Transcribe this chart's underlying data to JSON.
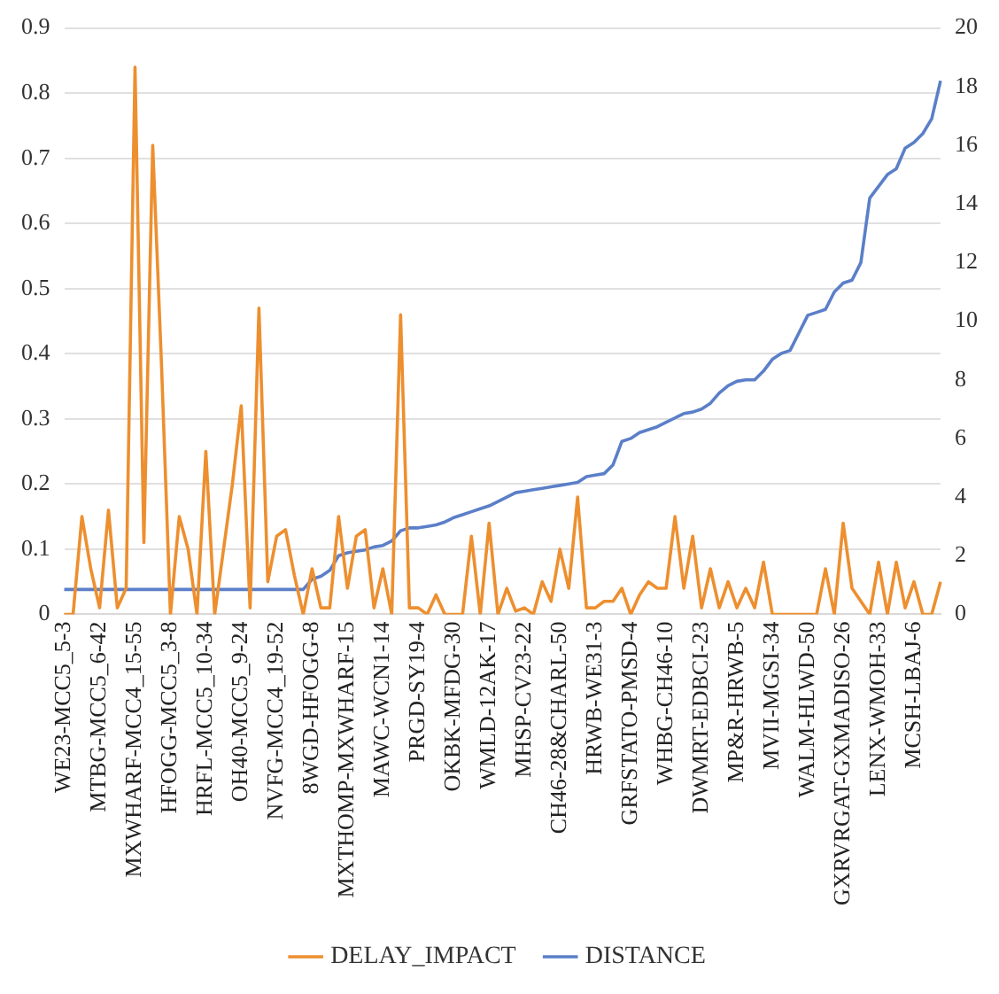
{
  "chart_data": {
    "type": "line",
    "categories": [
      "WE23-MCC5_5-3",
      null,
      null,
      null,
      "MTBG-MCC5_6-42",
      null,
      null,
      null,
      "MXWHARF-MCC4_15-55",
      null,
      null,
      null,
      "HFOGG-MCC5_3-8",
      null,
      null,
      null,
      "HRFL-MCC5_10-34",
      null,
      null,
      null,
      "OH40-MCC5_9-24",
      null,
      null,
      null,
      "NVFG-MCC4_19-52",
      null,
      null,
      null,
      "8WGD-HFOGG-8",
      null,
      null,
      null,
      "MXTHOMP-MXWHARF-15",
      null,
      null,
      null,
      "MAWC-WCN1-14",
      null,
      null,
      null,
      "PRGD-SY19-4",
      null,
      null,
      null,
      "OKBK-MFDG-30",
      null,
      null,
      null,
      "WMLD-12AK-17",
      null,
      null,
      null,
      "MHSP-CV23-22",
      null,
      null,
      null,
      "CH46-28&CHARL-50",
      null,
      null,
      null,
      "HRWB-WE31-3",
      null,
      null,
      null,
      "GRFSTATO-PMSD-4",
      null,
      null,
      null,
      "WHBG-CH46-10",
      null,
      null,
      null,
      "DWMRT-EDBCI-23",
      null,
      null,
      null,
      "MP&R-HRWB-5",
      null,
      null,
      null,
      "MVII-MGSI-34",
      null,
      null,
      null,
      "WALM-HLWD-50",
      null,
      null,
      null,
      "GXRVRGAT-GXMADISO-26",
      null,
      null,
      null,
      "LENX-WMOH-33",
      null,
      null,
      null,
      "MCSH-LBAJ-6",
      null,
      null,
      null
    ],
    "series": [
      {
        "name": "DELAY_IMPACT",
        "color": "#ed8f2f",
        "values": [
          0,
          0,
          0.15,
          0.07,
          0.01,
          0.16,
          0.01,
          0.04,
          0.84,
          0.11,
          0.72,
          0.38,
          0,
          0.15,
          0.1,
          0,
          0.25,
          0,
          0.1,
          0.2,
          0.32,
          0.01,
          0.47,
          0.05,
          0.12,
          0.13,
          0.06,
          0,
          0.07,
          0.01,
          0.01,
          0.15,
          0.04,
          0.12,
          0.13,
          0.01,
          0.07,
          0,
          0.46,
          0.01,
          0.01,
          0,
          0.03,
          0,
          0,
          0,
          0.12,
          0,
          0.14,
          0,
          0.04,
          0.005,
          0.01,
          0,
          0.05,
          0.02,
          0.1,
          0.04,
          0.18,
          0.01,
          0.01,
          0.02,
          0.02,
          0.04,
          0,
          0.03,
          0.05,
          0.04,
          0.04,
          0.15,
          0.04,
          0.12,
          0.01,
          0.07,
          0.01,
          0.05,
          0.01,
          0.04,
          0.01,
          0.08,
          0,
          0,
          0,
          0,
          0,
          0,
          0.07,
          0,
          0.14,
          0.04,
          0.02,
          0,
          0.08,
          0,
          0.08,
          0.01,
          0.05,
          0,
          0,
          0.05
        ]
      },
      {
        "name": "DISTANCE",
        "color": "#5b7fc8",
        "axis": "y2",
        "values": [
          0.85,
          0.85,
          0.85,
          0.85,
          0.85,
          0.85,
          0.85,
          0.85,
          0.85,
          0.85,
          0.85,
          0.85,
          0.85,
          0.85,
          0.85,
          0.85,
          0.85,
          0.85,
          0.85,
          0.85,
          0.85,
          0.85,
          0.85,
          0.85,
          0.85,
          0.85,
          0.85,
          0.85,
          1.2,
          1.3,
          1.5,
          2.0,
          2.1,
          2.15,
          2.2,
          2.3,
          2.35,
          2.5,
          2.85,
          2.95,
          2.95,
          3.0,
          3.05,
          3.15,
          3.3,
          3.4,
          3.5,
          3.6,
          3.7,
          3.85,
          4.0,
          4.15,
          4.2,
          4.25,
          4.3,
          4.35,
          4.4,
          4.45,
          4.5,
          4.7,
          4.75,
          4.8,
          5.1,
          5.9,
          6.0,
          6.2,
          6.3,
          6.4,
          6.55,
          6.7,
          6.85,
          6.9,
          7.0,
          7.2,
          7.55,
          7.8,
          7.95,
          8.0,
          8.0,
          8.3,
          8.7,
          8.9,
          9.0,
          9.6,
          10.2,
          10.3,
          10.4,
          11.0,
          11.3,
          11.4,
          12.0,
          14.2,
          14.6,
          15.0,
          15.2,
          15.9,
          16.1,
          16.4,
          16.9,
          18.2
        ]
      }
    ],
    "ylim": [
      0,
      0.9
    ],
    "yticks": [
      0,
      0.1,
      0.2,
      0.3,
      0.4,
      0.5,
      0.6,
      0.7,
      0.8,
      0.9
    ],
    "y2lim": [
      0,
      20
    ],
    "y2ticks": [
      0,
      2,
      4,
      6,
      8,
      10,
      12,
      14,
      16,
      18,
      20
    ],
    "grid": "y",
    "legend": "bottom",
    "marker": "none",
    "line_style": "solid"
  }
}
